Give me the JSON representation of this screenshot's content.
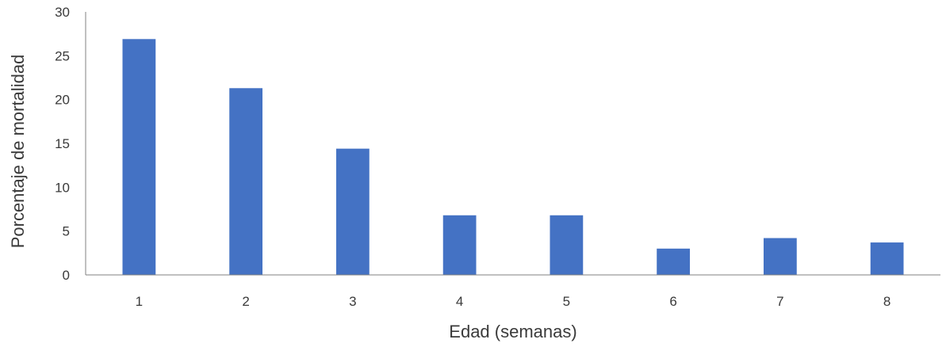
{
  "chart_data": {
    "type": "bar",
    "title": "",
    "xlabel": "Edad (semanas)",
    "ylabel": "Porcentaje de mortalidad",
    "categories": [
      "1",
      "2",
      "3",
      "4",
      "5",
      "6",
      "7",
      "8"
    ],
    "values": [
      26.9,
      21.3,
      14.4,
      6.8,
      6.8,
      3.0,
      4.2,
      3.7
    ],
    "ylim": [
      0,
      30
    ],
    "yticks": [
      "0",
      "5",
      "10",
      "15",
      "20",
      "25",
      "30"
    ],
    "grid": false,
    "legend": "none",
    "bar_color": "#4472c4",
    "axis_color": "#808080"
  }
}
